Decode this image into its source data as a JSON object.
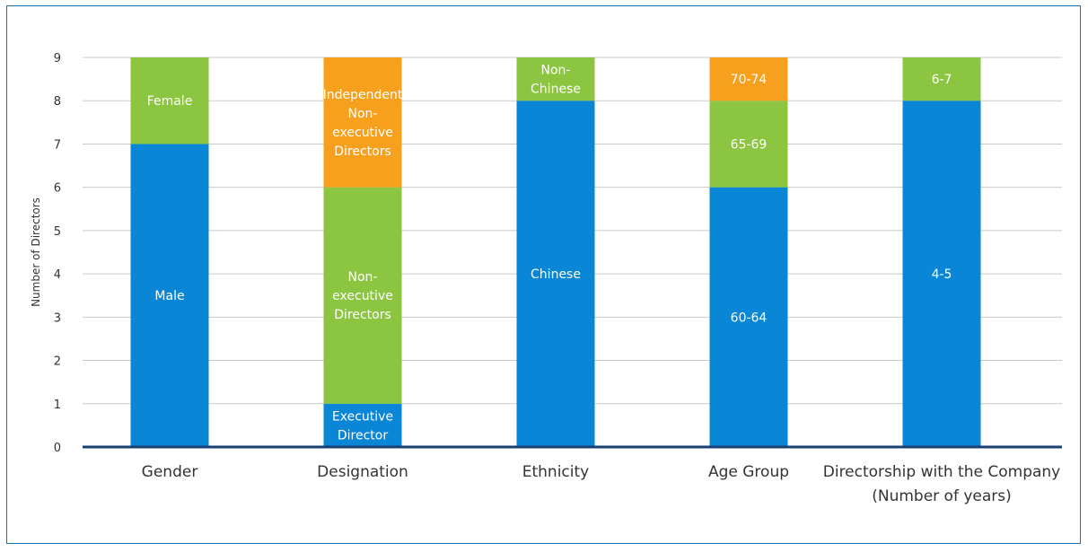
{
  "chart_data": {
    "type": "bar",
    "stacked": true,
    "ylabel": "Number of Directors",
    "ylim": [
      0,
      9
    ],
    "yticks": [
      0,
      1,
      2,
      3,
      4,
      5,
      6,
      7,
      8,
      9
    ],
    "grid": true,
    "colors": {
      "blue": "#0a86d6",
      "green": "#8cc540",
      "orange": "#f7a01e",
      "axis": "#1a3f73",
      "grid": "#c9c9c9"
    },
    "categories": [
      {
        "label": [
          "Gender"
        ],
        "segments": [
          {
            "label": [
              "Male"
            ],
            "value": 7,
            "color": "blue"
          },
          {
            "label": [
              "Female"
            ],
            "value": 2,
            "color": "green"
          }
        ]
      },
      {
        "label": [
          "Designation"
        ],
        "segments": [
          {
            "label": [
              "Executive",
              "Director"
            ],
            "value": 1,
            "color": "blue"
          },
          {
            "label": [
              "Non-",
              "executive",
              "Directors"
            ],
            "value": 5,
            "color": "green"
          },
          {
            "label": [
              "Independent",
              "Non-",
              "executive",
              "Directors"
            ],
            "value": 3,
            "color": "orange"
          }
        ]
      },
      {
        "label": [
          "Ethnicity"
        ],
        "segments": [
          {
            "label": [
              "Chinese"
            ],
            "value": 8,
            "color": "blue"
          },
          {
            "label": [
              "Non-",
              "Chinese"
            ],
            "value": 1,
            "color": "green"
          }
        ]
      },
      {
        "label": [
          "Age Group"
        ],
        "segments": [
          {
            "label": [
              "60-64"
            ],
            "value": 6,
            "color": "blue"
          },
          {
            "label": [
              "65-69"
            ],
            "value": 2,
            "color": "green"
          },
          {
            "label": [
              "70-74"
            ],
            "value": 1,
            "color": "orange"
          }
        ]
      },
      {
        "label": [
          "Directorship with the Company",
          "(Number of years)"
        ],
        "segments": [
          {
            "label": [
              "4-5"
            ],
            "value": 8,
            "color": "blue"
          },
          {
            "label": [
              "6-7"
            ],
            "value": 1,
            "color": "green"
          }
        ]
      }
    ]
  }
}
